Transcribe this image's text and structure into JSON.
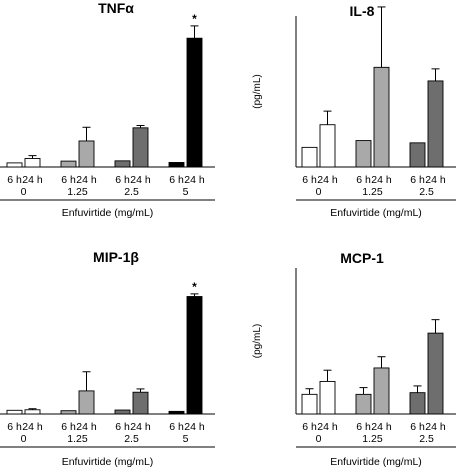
{
  "chart_data": [
    {
      "type": "bar",
      "title": "TNFα",
      "ylabel": "",
      "xlabel": "Enfuvirtide (mg/mL)",
      "ylim": [
        0,
        100
      ],
      "time_labels": [
        "6 h",
        "24 h"
      ],
      "categories": [
        "0",
        "1.25",
        "2.5",
        "5"
      ],
      "series": [
        {
          "values": [
            3,
            4.3,
            4.5,
            3.3
          ],
          "errors": [
            0,
            0,
            0,
            0
          ]
        },
        {
          "values": [
            6.2,
            19,
            28.6,
            94
          ],
          "errors": [
            2.1,
            10,
            1.7,
            9
          ]
        }
      ],
      "annotations": [
        {
          "category": "5",
          "time": "24 h",
          "text": "*"
        }
      ],
      "colors": {
        "6 h": [
          "#ffffff",
          "#a9a9a9",
          "#6e6e6e",
          "#000000"
        ],
        "24 h": [
          "#ffffff",
          "#a9a9a9",
          "#6e6e6e",
          "#000000"
        ]
      }
    },
    {
      "type": "bar",
      "title": "IL-8",
      "ylabel": "(pg/mL)",
      "xlabel": "Enfuvirtide (mg/mL)",
      "ylim": [
        0,
        100
      ],
      "time_labels": [
        "6 h",
        "24 h"
      ],
      "categories": [
        "0",
        "1.25",
        "2.5"
      ],
      "series": [
        {
          "values": [
            13,
            17.5,
            16
          ],
          "errors": [
            0,
            0,
            0
          ]
        },
        {
          "values": [
            28,
            66,
            57
          ],
          "errors": [
            9,
            40,
            8
          ]
        }
      ],
      "colors": {
        "6 h": [
          "#ffffff",
          "#a9a9a9",
          "#6e6e6e"
        ],
        "24 h": [
          "#ffffff",
          "#a9a9a9",
          "#6e6e6e"
        ]
      }
    },
    {
      "type": "bar",
      "title": "MIP-1β",
      "ylabel": "",
      "xlabel": "Enfuvirtide (mg/mL)",
      "ylim": [
        0,
        100
      ],
      "time_labels": [
        "6 h",
        "24 h"
      ],
      "categories": [
        "0",
        "1.25",
        "2.5",
        "5"
      ],
      "series": [
        {
          "values": [
            2.8,
            2.5,
            3,
            2
          ],
          "errors": [
            0,
            0,
            0,
            0
          ]
        },
        {
          "values": [
            3.2,
            17.5,
            16.5,
            89
          ],
          "errors": [
            0.8,
            14.5,
            2.5,
            2
          ]
        }
      ],
      "annotations": [
        {
          "category": "5",
          "time": "24 h",
          "text": "*"
        }
      ],
      "colors": {
        "6 h": [
          "#ffffff",
          "#a9a9a9",
          "#6e6e6e",
          "#000000"
        ],
        "24 h": [
          "#ffffff",
          "#a9a9a9",
          "#6e6e6e",
          "#000000"
        ]
      }
    },
    {
      "type": "bar",
      "title": "MCP-1",
      "ylabel": "(pg/mL)",
      "xlabel": "Enfuvirtide (mg/mL)",
      "ylim": [
        0,
        130
      ],
      "time_labels": [
        "6 h",
        "24 h"
      ],
      "categories": [
        "0",
        "1.25",
        "2.5"
      ],
      "series": [
        {
          "values": [
            17.5,
            17.5,
            19
          ],
          "errors": [
            5,
            6,
            6
          ]
        },
        {
          "values": [
            29,
            41,
            72
          ],
          "errors": [
            10,
            10,
            12
          ]
        }
      ],
      "colors": {
        "6 h": [
          "#ffffff",
          "#a9a9a9",
          "#6e6e6e"
        ],
        "24 h": [
          "#ffffff",
          "#a9a9a9",
          "#6e6e6e"
        ]
      }
    }
  ]
}
